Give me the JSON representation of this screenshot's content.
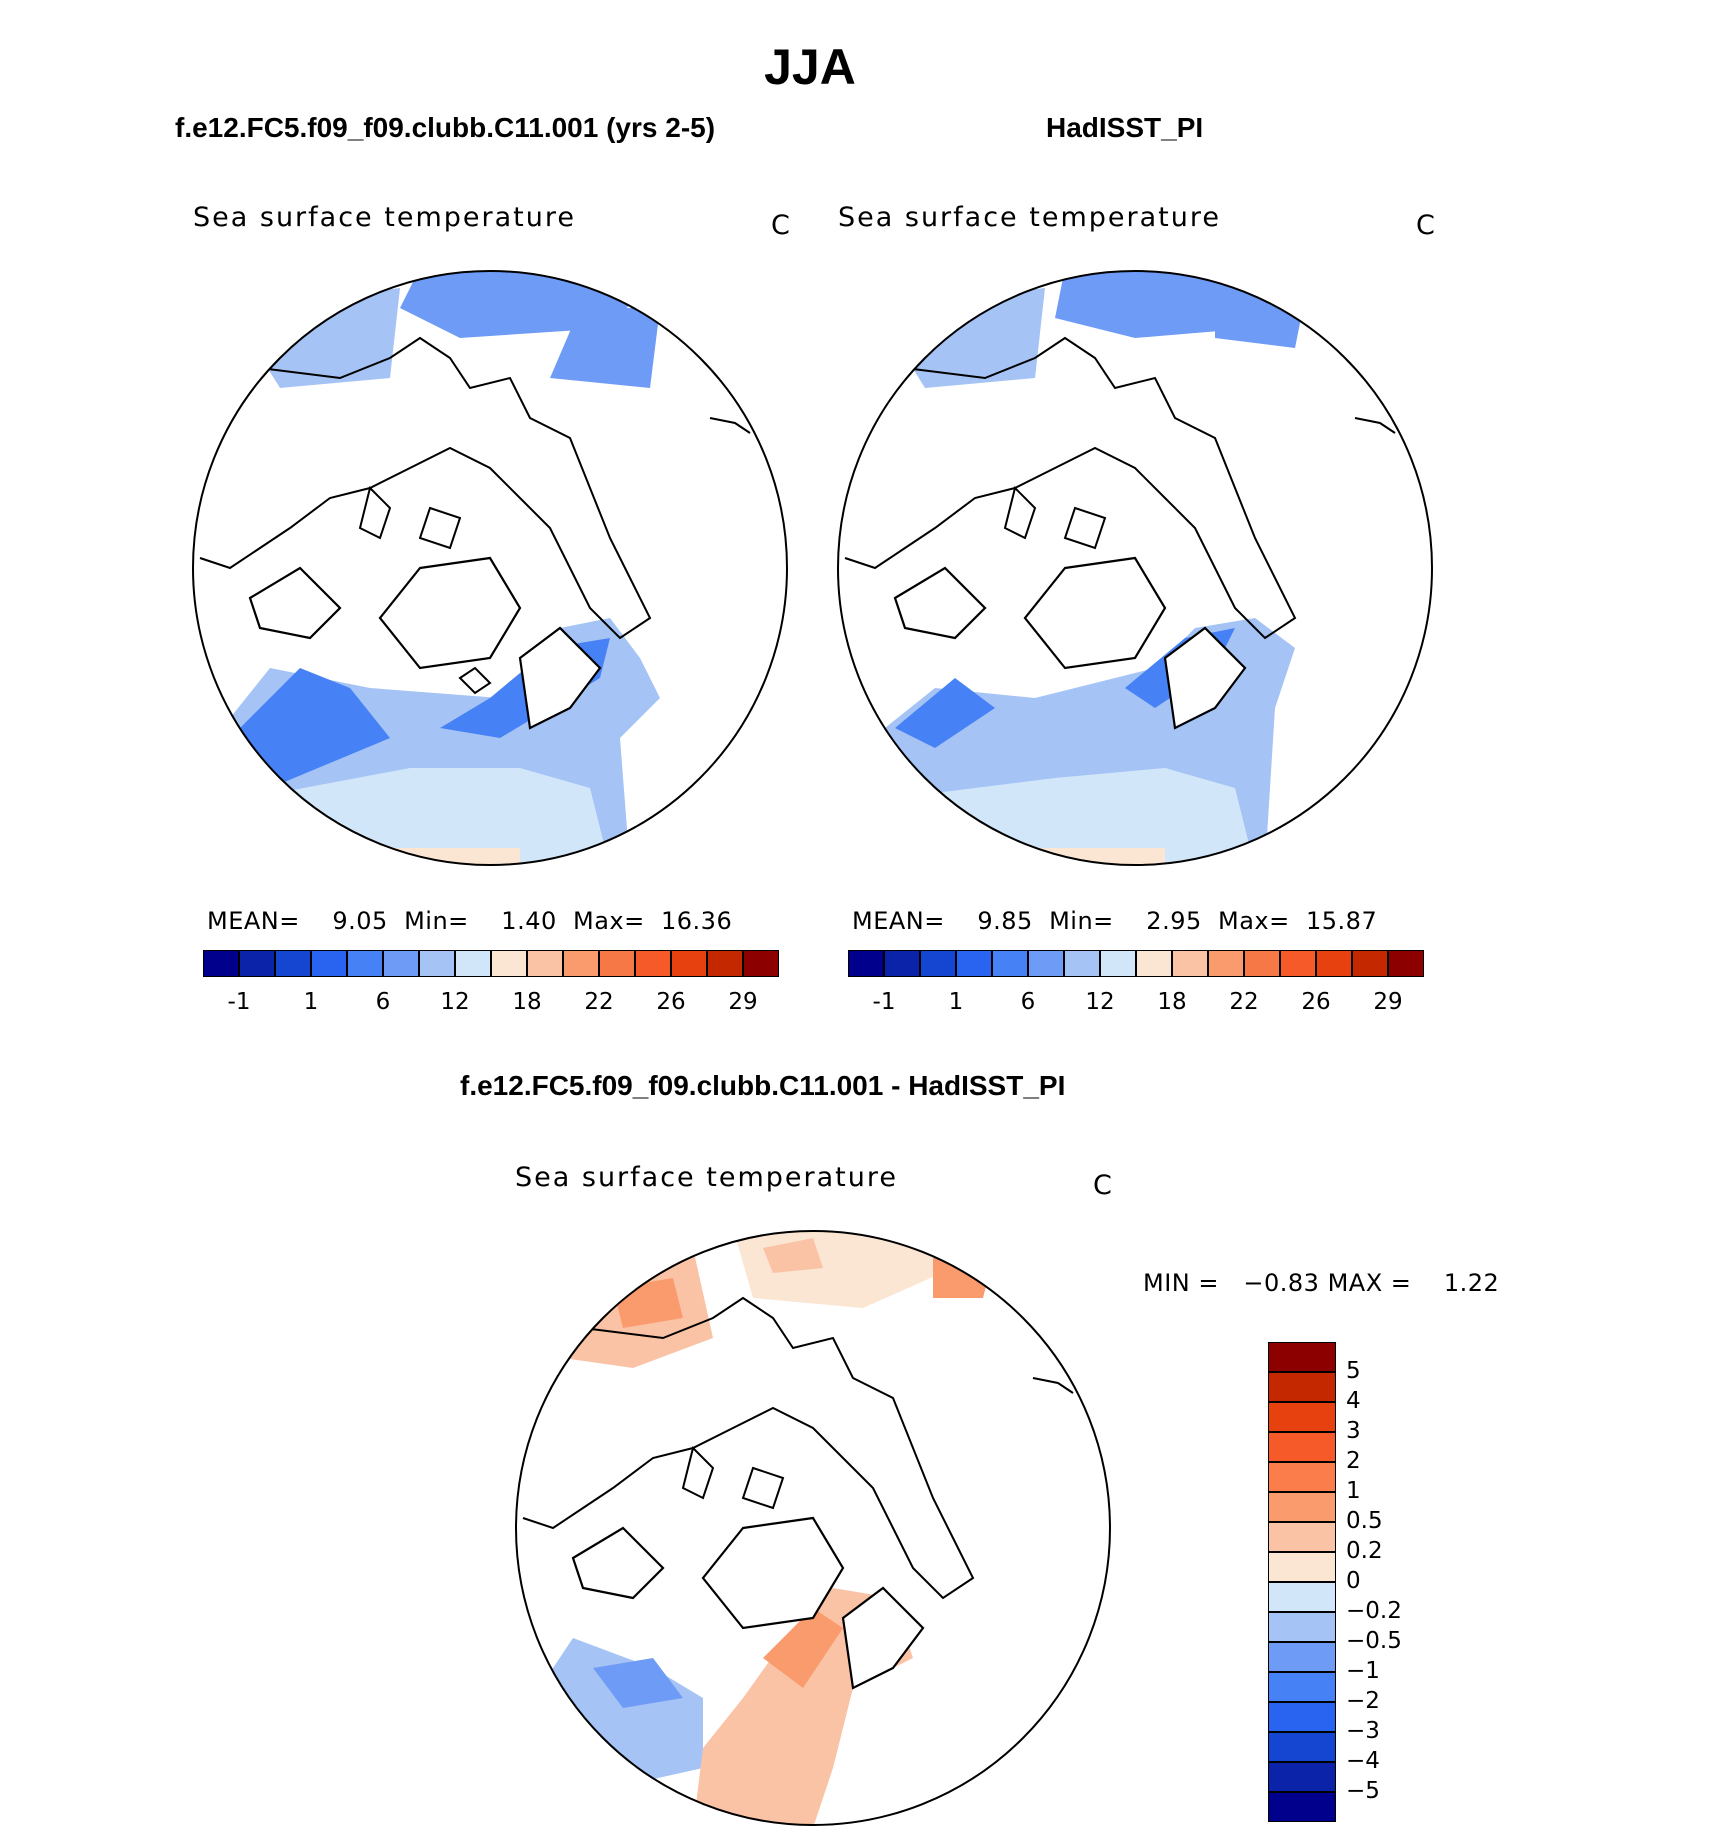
{
  "chart_data": [
    {
      "type": "heatmap",
      "projection": "north polar stereographic",
      "title": "f.e12.FC5.f09_f09.clubb.C11.001 (yrs 2-5)",
      "variable": "Sea surface temperature",
      "units": "C",
      "stats": {
        "mean_label": "MEAN=",
        "mean": "9.05",
        "min_label": "Min=",
        "min": "1.40",
        "max_label": "Max=",
        "max": "16.36"
      },
      "colorbar": {
        "orientation": "horizontal",
        "levels": [
          "-1",
          "1",
          "6",
          "12",
          "18",
          "22",
          "26",
          "29"
        ],
        "colors": [
          "#00008c",
          "#0a23a8",
          "#1446d2",
          "#2864f0",
          "#4682f5",
          "#6e9bf5",
          "#a5c3f5",
          "#d2e6fa",
          "#fae6d2",
          "#fac3a5",
          "#fa9b6e",
          "#f57846",
          "#f55a28",
          "#e6410f",
          "#c32800",
          "#8c0000"
        ]
      }
    },
    {
      "type": "heatmap",
      "projection": "north polar stereographic",
      "title": "HadISST_PI",
      "variable": "Sea surface temperature",
      "units": "C",
      "stats": {
        "mean_label": "MEAN=",
        "mean": "9.85",
        "min_label": "Min=",
        "min": "2.95",
        "max_label": "Max=",
        "max": "15.87"
      },
      "colorbar": {
        "orientation": "horizontal",
        "levels": [
          "-1",
          "1",
          "6",
          "12",
          "18",
          "22",
          "26",
          "29"
        ],
        "colors": [
          "#00008c",
          "#0a23a8",
          "#1446d2",
          "#2864f0",
          "#4682f5",
          "#6e9bf5",
          "#a5c3f5",
          "#d2e6fa",
          "#fae6d2",
          "#fac3a5",
          "#fa9b6e",
          "#f57846",
          "#f55a28",
          "#e6410f",
          "#c32800",
          "#8c0000"
        ]
      }
    },
    {
      "type": "heatmap",
      "projection": "north polar stereographic",
      "title": "f.e12.FC5.f09_f09.clubb.C11.001 - HadISST_PI",
      "variable": "Sea surface temperature",
      "units": "C",
      "stats": {
        "min_label": "MIN =",
        "min": "−0.83",
        "max_label": "MAX =",
        "max": "1.22"
      },
      "colorbar": {
        "orientation": "vertical",
        "levels": [
          "5",
          "4",
          "3",
          "2",
          "1",
          "0.5",
          "0.2",
          "0",
          "−0.2",
          "−0.5",
          "−1",
          "−2",
          "−3",
          "−4",
          "−5"
        ],
        "colors": [
          "#8c0000",
          "#c32800",
          "#e6410f",
          "#f55a28",
          "#fa7d4b",
          "#fa9b6e",
          "#fac3a5",
          "#fae6d2",
          "#d2e6fa",
          "#a5c3f5",
          "#6e9bf5",
          "#4682f5",
          "#2864f0",
          "#1446d2",
          "#0a23a8",
          "#00008c"
        ]
      }
    }
  ],
  "page": {
    "title": "JJA"
  }
}
